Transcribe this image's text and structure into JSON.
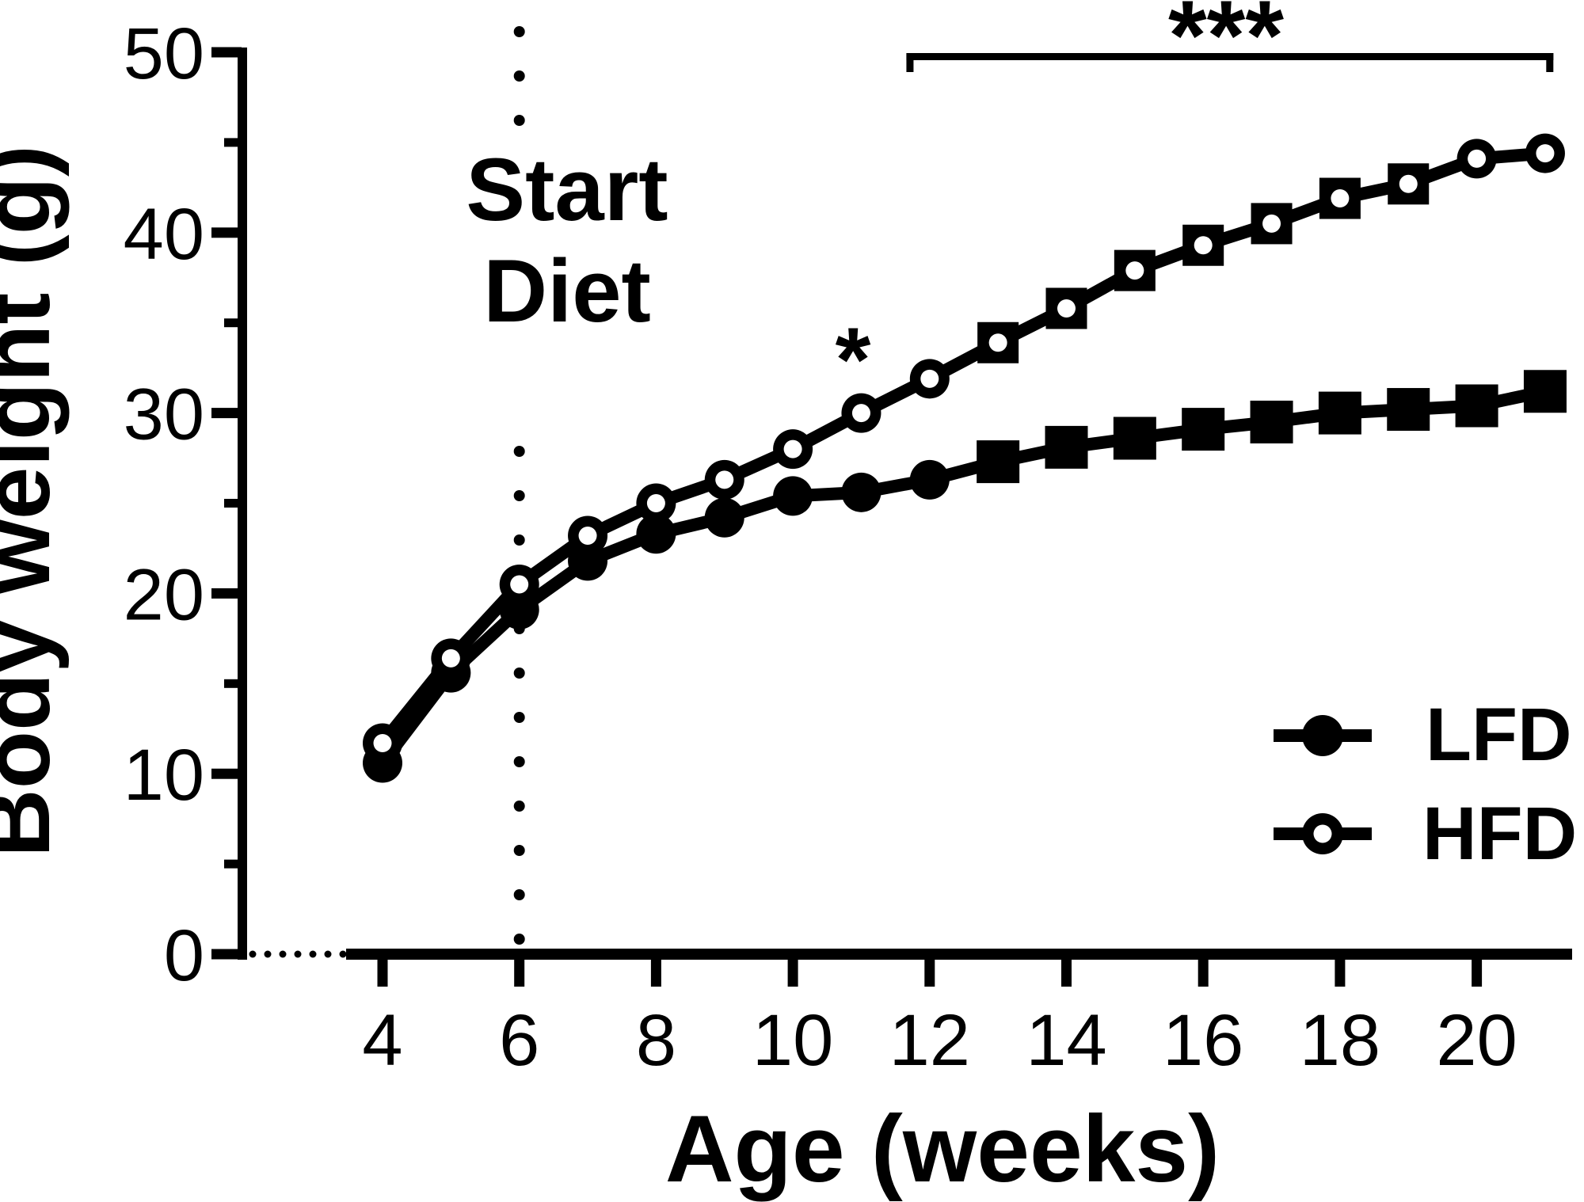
{
  "chart_data": {
    "type": "line",
    "title": "",
    "xlabel": "Age (weeks)",
    "ylabel": "Body weight (g)",
    "xlim": [
      4,
      21
    ],
    "ylim": [
      0,
      50
    ],
    "x_ticks": [
      4,
      6,
      8,
      10,
      12,
      14,
      16,
      18,
      20
    ],
    "y_ticks": [
      0,
      10,
      20,
      30,
      40,
      50
    ],
    "y_minor_ticks": [
      5,
      15,
      25,
      35,
      45
    ],
    "grid": "off",
    "x": [
      4,
      5,
      6,
      7,
      8,
      9,
      10,
      11,
      12,
      13,
      14,
      15,
      16,
      17,
      18,
      19,
      20,
      21
    ],
    "series": [
      {
        "name": "LFD",
        "color": "#000000",
        "values": [
          10.6,
          15.6,
          19.1,
          21.8,
          23.3,
          24.2,
          25.4,
          25.6,
          26.3,
          27.3,
          28.1,
          28.6,
          29.1,
          29.5,
          30.0,
          30.2,
          30.4,
          31.2
        ],
        "markers": [
          "circle-filled",
          "circle-filled",
          "circle-filled",
          "circle-filled",
          "circle-filled",
          "circle-filled",
          "circle-filled",
          "circle-filled",
          "circle-filled",
          "square-filled",
          "square-filled",
          "square-filled",
          "square-filled",
          "square-filled",
          "square-filled",
          "square-filled",
          "square-filled",
          "square-filled"
        ]
      },
      {
        "name": "HFD",
        "color": "#000000",
        "values": [
          11.7,
          16.4,
          20.5,
          23.2,
          25.0,
          26.3,
          28.0,
          30.0,
          31.9,
          33.9,
          35.8,
          37.9,
          39.3,
          40.5,
          41.9,
          42.7,
          44.1,
          44.4
        ],
        "markers": [
          "circle-open",
          "circle-open",
          "circle-open",
          "circle-open",
          "circle-open",
          "circle-open",
          "circle-open",
          "circle-open",
          "circle-open",
          "square-open-circle",
          "square-open-circle",
          "square-open-circle",
          "square-open-circle",
          "square-open-circle",
          "square-open-circle",
          "square-open-circle",
          "circle-open",
          "circle-open"
        ]
      }
    ],
    "legend": {
      "position": "bottom-right",
      "entries": [
        {
          "label": "LFD",
          "marker": "circle-filled"
        },
        {
          "label": "HFD",
          "marker": "circle-open"
        }
      ]
    },
    "annotations": {
      "start_diet": {
        "text_line1": "Start",
        "text_line2": "Diet",
        "week": 6
      },
      "single_star": {
        "text": "*",
        "week": 11
      },
      "bracket": {
        "text": "***",
        "from_week": 11.66,
        "to_week": 21.12
      }
    }
  }
}
